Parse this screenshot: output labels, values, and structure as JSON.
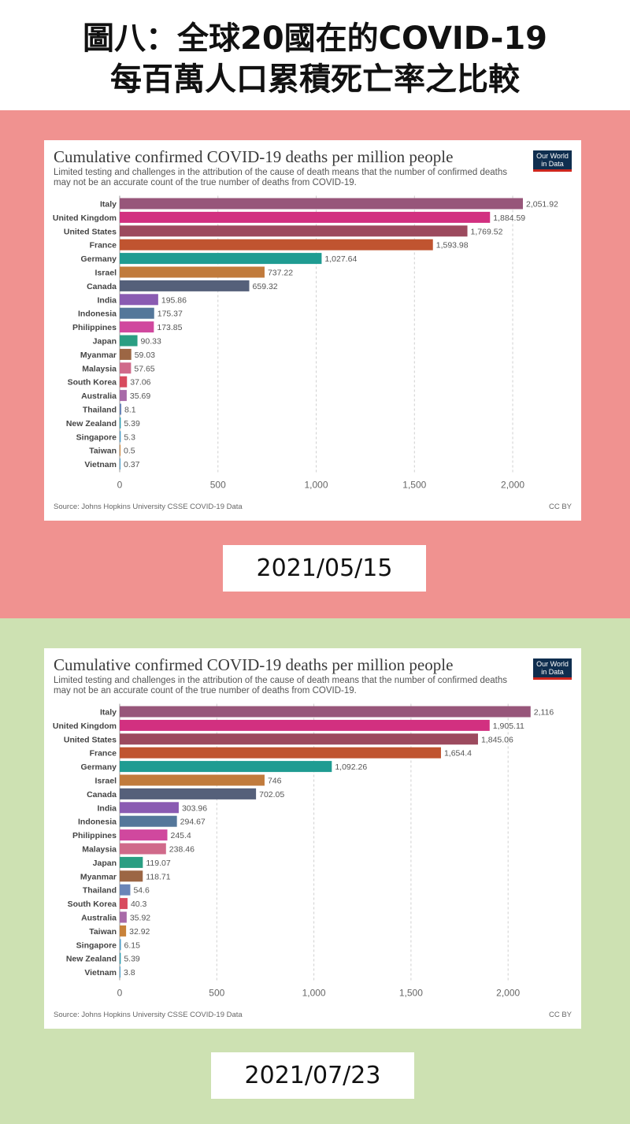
{
  "header": {
    "line1": "圖八：全球20國在的COVID-19",
    "line2": "每百萬人口累積死亡率之比較"
  },
  "colors": {
    "top_band": "#f09290",
    "bottom_band": "#cde1b2"
  },
  "chart_data": [
    {
      "type": "bar",
      "orientation": "horizontal",
      "title": "Cumulative confirmed COVID-19 deaths per million people",
      "subtitle": "Limited testing and challenges in the attribution of the cause of death means that the number of confirmed deaths may not be an accurate count of the true number of deaths from COVID-19.",
      "logo_line1": "Our World",
      "logo_line2": "in Data",
      "source": "Source: Johns Hopkins University CSSE COVID-19 Data",
      "license": "CC BY",
      "date_label": "2021/05/15",
      "xlim": [
        0,
        2100
      ],
      "x_ticks": [
        0,
        500,
        1000,
        1500,
        2000
      ],
      "x_tick_labels": [
        "0",
        "500",
        "1,000",
        "1,500",
        "2,000"
      ],
      "grid": true,
      "categories": [
        "Italy",
        "United Kingdom",
        "United States",
        "France",
        "Germany",
        "Israel",
        "Canada",
        "India",
        "Indonesia",
        "Philippines",
        "Japan",
        "Myanmar",
        "Malaysia",
        "South Korea",
        "Australia",
        "Thailand",
        "New Zealand",
        "Singapore",
        "Taiwan",
        "Vietnam"
      ],
      "values": [
        2051.92,
        1884.59,
        1769.52,
        1593.98,
        1027.64,
        737.22,
        659.32,
        195.86,
        175.37,
        173.85,
        90.33,
        59.03,
        57.65,
        37.06,
        35.69,
        8.1,
        5.39,
        5.3,
        0.5,
        0.37
      ],
      "value_labels": [
        "2,051.92",
        "1,884.59",
        "1,769.52",
        "1,593.98",
        "1,027.64",
        "737.22",
        "659.32",
        "195.86",
        "175.37",
        "173.85",
        "90.33",
        "59.03",
        "57.65",
        "37.06",
        "35.69",
        "8.1",
        "5.39",
        "5.3",
        "0.5",
        "0.37"
      ],
      "bar_colors": [
        "#97567a",
        "#d23080",
        "#9c4a5e",
        "#c05430",
        "#1f9c92",
        "#c17b3c",
        "#55607a",
        "#8a5bb2",
        "#54779a",
        "#d0489e",
        "#2a9e82",
        "#9c6644",
        "#d06a8a",
        "#d84b5e",
        "#a86aa8",
        "#6a85b8",
        "#2a9cb0",
        "#4a9cc8",
        "#c8823a",
        "#4a9cc8"
      ]
    },
    {
      "type": "bar",
      "orientation": "horizontal",
      "title": "Cumulative confirmed COVID-19 deaths per million people",
      "subtitle": "Limited testing and challenges in the attribution of the cause of death means that the number of confirmed deaths may not be an accurate count of the true number of deaths from COVID-19.",
      "logo_line1": "Our World",
      "logo_line2": "in Data",
      "source": "Source: Johns Hopkins University CSSE COVID-19 Data",
      "license": "CC BY",
      "date_label": "2021/07/23",
      "xlim": [
        0,
        2125
      ],
      "x_ticks": [
        0,
        500,
        1000,
        1500,
        2000
      ],
      "x_tick_labels": [
        "0",
        "500",
        "1,000",
        "1,500",
        "2,000"
      ],
      "grid": true,
      "categories": [
        "Italy",
        "United Kingdom",
        "United States",
        "France",
        "Germany",
        "Israel",
        "Canada",
        "India",
        "Indonesia",
        "Philippines",
        "Malaysia",
        "Japan",
        "Myanmar",
        "Thailand",
        "South Korea",
        "Australia",
        "Taiwan",
        "Singapore",
        "New Zealand",
        "Vietnam"
      ],
      "values": [
        2116,
        1905.11,
        1845.06,
        1654.4,
        1092.26,
        746,
        702.05,
        303.96,
        294.67,
        245.4,
        238.46,
        119.07,
        118.71,
        54.6,
        40.3,
        35.92,
        32.92,
        6.15,
        5.39,
        3.8
      ],
      "value_labels": [
        "2,116",
        "1,905.11",
        "1,845.06",
        "1,654.4",
        "1,092.26",
        "746",
        "702.05",
        "303.96",
        "294.67",
        "245.4",
        "238.46",
        "119.07",
        "118.71",
        "54.6",
        "40.3",
        "35.92",
        "32.92",
        "6.15",
        "5.39",
        "3.8"
      ],
      "bar_colors": [
        "#97567a",
        "#d23080",
        "#9c4a5e",
        "#c05430",
        "#1f9c92",
        "#c17b3c",
        "#55607a",
        "#8a5bb2",
        "#54779a",
        "#d0489e",
        "#d06a8a",
        "#2a9e82",
        "#9c6644",
        "#6a85b8",
        "#d84b5e",
        "#a86aa8",
        "#c8823a",
        "#4a9cc8",
        "#2a9cb0",
        "#4a9cc8"
      ]
    }
  ]
}
